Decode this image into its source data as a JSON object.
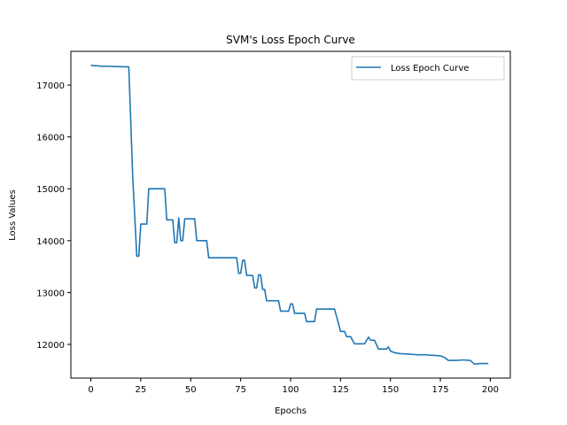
{
  "chart_data": {
    "type": "line",
    "title": "SVM's Loss Epoch Curve",
    "xlabel": "Epochs",
    "ylabel": "Loss Values",
    "xlim": [
      -10,
      210
    ],
    "ylim": [
      11350,
      17650
    ],
    "xticks": [
      0,
      25,
      50,
      75,
      100,
      125,
      150,
      175,
      200
    ],
    "yticks": [
      12000,
      13000,
      14000,
      15000,
      16000,
      17000
    ],
    "grid": false,
    "legend_position": "top-right",
    "series": [
      {
        "name": "Loss Epoch Curve",
        "color": "#1f77b4",
        "points": [
          [
            0,
            17380
          ],
          [
            5,
            17365
          ],
          [
            10,
            17360
          ],
          [
            15,
            17355
          ],
          [
            19,
            17350
          ],
          [
            21,
            15200
          ],
          [
            23,
            13700
          ],
          [
            24,
            13700
          ],
          [
            25,
            14320
          ],
          [
            28,
            14320
          ],
          [
            29,
            15000
          ],
          [
            37,
            15000
          ],
          [
            38,
            14400
          ],
          [
            41,
            14400
          ],
          [
            42,
            13960
          ],
          [
            43,
            13960
          ],
          [
            44,
            14440
          ],
          [
            45,
            14000
          ],
          [
            46,
            14000
          ],
          [
            47,
            14420
          ],
          [
            52,
            14420
          ],
          [
            53,
            14000
          ],
          [
            58,
            14000
          ],
          [
            59,
            13670
          ],
          [
            73,
            13670
          ],
          [
            74,
            13370
          ],
          [
            75,
            13370
          ],
          [
            76,
            13620
          ],
          [
            77,
            13620
          ],
          [
            78,
            13330
          ],
          [
            81,
            13330
          ],
          [
            82,
            13090
          ],
          [
            83,
            13090
          ],
          [
            84,
            13340
          ],
          [
            85,
            13340
          ],
          [
            86,
            13060
          ],
          [
            87,
            13060
          ],
          [
            88,
            12840
          ],
          [
            94,
            12840
          ],
          [
            95,
            12640
          ],
          [
            99,
            12640
          ],
          [
            100,
            12780
          ],
          [
            101,
            12780
          ],
          [
            102,
            12600
          ],
          [
            107,
            12600
          ],
          [
            108,
            12440
          ],
          [
            112,
            12440
          ],
          [
            113,
            12680
          ],
          [
            122,
            12680
          ],
          [
            124,
            12400
          ],
          [
            125,
            12250
          ],
          [
            127,
            12250
          ],
          [
            128,
            12150
          ],
          [
            130,
            12150
          ],
          [
            132,
            12010
          ],
          [
            137,
            12010
          ],
          [
            139,
            12140
          ],
          [
            140,
            12080
          ],
          [
            142,
            12080
          ],
          [
            144,
            11910
          ],
          [
            148,
            11910
          ],
          [
            149,
            11950
          ],
          [
            150,
            11870
          ],
          [
            152,
            11840
          ],
          [
            155,
            11820
          ],
          [
            160,
            11810
          ],
          [
            163,
            11800
          ],
          [
            167,
            11800
          ],
          [
            170,
            11790
          ],
          [
            175,
            11780
          ],
          [
            177,
            11750
          ],
          [
            179,
            11690
          ],
          [
            183,
            11690
          ],
          [
            186,
            11700
          ],
          [
            190,
            11690
          ],
          [
            192,
            11620
          ],
          [
            195,
            11630
          ],
          [
            199,
            11630
          ]
        ]
      }
    ]
  }
}
